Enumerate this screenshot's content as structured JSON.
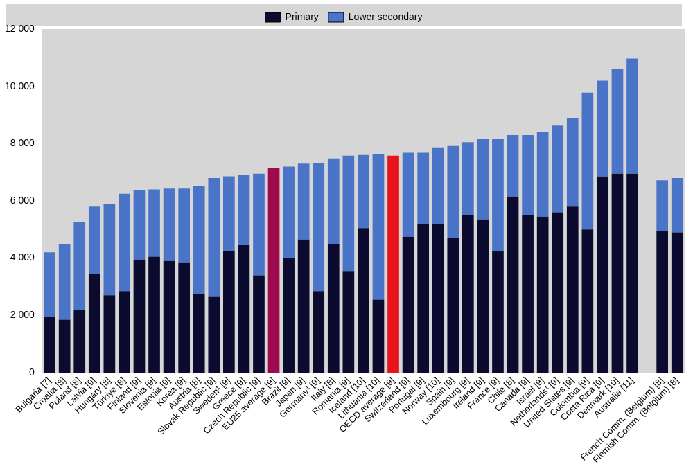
{
  "chart_data": {
    "type": "bar",
    "stacked": true,
    "grid": false,
    "legend": "top",
    "categories": [
      "Bulgaria [7]",
      "Croatia [8]",
      "Poland [8]",
      "Latvia [9]",
      "Hungary [8]",
      "Türkiye [8]",
      "Finland [9]",
      "Slovenia [9]",
      "Estonia [9]",
      "Korea [9]",
      "Austria [8]",
      "Slovak Republic [9]",
      "Sweden¹ [9]",
      "Greece [9]",
      "Czech Republic [9]",
      "EU25 average [9]",
      "Brazil [9]",
      "Japan [9]",
      "Germany¹ [9]",
      "Italy [8]",
      "Romania [9]",
      "Iceland [10]",
      "Lithuania [10]",
      "OECD average [9]",
      "Switzerland [9]",
      "Portugal [9]",
      "Norway [10]",
      "Spain [9]",
      "Luxembourg [9]",
      "Ireland [9]",
      "France [9]",
      "Chile [8]",
      "Canada [9]",
      "Israel [9]",
      "Netherlands¹ [9]",
      "United States [9]",
      "Colombia [9]",
      "Costa Rica [9]",
      "Denmark [10]",
      "Australia [11]",
      null,
      "French Comm. (Belgium) [8]",
      "Flemish Comm. (Belgium) [8]"
    ],
    "series": [
      {
        "name": "Primary",
        "color": "#0b0b30",
        "colors": [
          "#0b0b30",
          "#0b0b30",
          "#0b0b30",
          "#0b0b30",
          "#0b0b30",
          "#0b0b30",
          "#0b0b30",
          "#0b0b30",
          "#0b0b30",
          "#0b0b30",
          "#0b0b30",
          "#0b0b30",
          "#0b0b30",
          "#0b0b30",
          "#0b0b30",
          "#9e0a4e",
          "#0b0b30",
          "#0b0b30",
          "#0b0b30",
          "#0b0b30",
          "#0b0b30",
          "#0b0b30",
          "#0b0b30",
          "#e8141c",
          "#0b0b30",
          "#0b0b30",
          "#0b0b30",
          "#0b0b30",
          "#0b0b30",
          "#0b0b30",
          "#0b0b30",
          "#0b0b30",
          "#0b0b30",
          "#0b0b30",
          "#0b0b30",
          "#0b0b30",
          "#0b0b30",
          "#0b0b30",
          "#0b0b30",
          "#0b0b30",
          "#0b0b30",
          "#0b0b30",
          "#0b0b30"
        ],
        "values": [
          1950,
          1850,
          2200,
          3450,
          2700,
          2850,
          3950,
          4050,
          3900,
          3850,
          2750,
          2650,
          4250,
          4450,
          3400,
          4000,
          4000,
          4650,
          2850,
          4500,
          3550,
          5050,
          2550,
          4500,
          4750,
          5200,
          5200,
          4700,
          5500,
          5350,
          4250,
          6150,
          5500,
          5450,
          5600,
          5800,
          5000,
          6850,
          6950,
          6950,
          null,
          4950,
          4900
        ]
      },
      {
        "name": "Lower secondary",
        "color": "#4a74c8",
        "colors": [
          "#4a74c8",
          "#4a74c8",
          "#4a74c8",
          "#4a74c8",
          "#4a74c8",
          "#4a74c8",
          "#4a74c8",
          "#4a74c8",
          "#4a74c8",
          "#4a74c8",
          "#4a74c8",
          "#4a74c8",
          "#4a74c8",
          "#4a74c8",
          "#4a74c8",
          "#9e0a4e",
          "#4a74c8",
          "#4a74c8",
          "#4a74c8",
          "#4a74c8",
          "#4a74c8",
          "#4a74c8",
          "#4a74c8",
          "#e8141c",
          "#4a74c8",
          "#4a74c8",
          "#4a74c8",
          "#4a74c8",
          "#4a74c8",
          "#4a74c8",
          "#4a74c8",
          "#4a74c8",
          "#4a74c8",
          "#4a74c8",
          "#4a74c8",
          "#4a74c8",
          "#4a74c8",
          "#4a74c8",
          "#4a74c8",
          "#4a74c8",
          "#4a74c8",
          "#4a74c8",
          "#4a74c8"
        ],
        "values": [
          2250,
          2650,
          3050,
          2350,
          3200,
          3400,
          2430,
          2350,
          2530,
          2580,
          3780,
          4150,
          2610,
          2450,
          3550,
          3150,
          3200,
          2650,
          4480,
          2980,
          4030,
          2550,
          5070,
          3080,
          2930,
          2480,
          2670,
          3220,
          2550,
          2800,
          3920,
          2150,
          2800,
          2950,
          3030,
          3080,
          4780,
          3350,
          3650,
          4020,
          null,
          1770,
          1900
        ]
      }
    ],
    "ylim": [
      0,
      12000
    ],
    "yticks": [
      0,
      {
        "value": 2000,
        "label": "2 000"
      },
      {
        "value": 4000,
        "label": "4 000"
      },
      {
        "value": 6000,
        "label": "6 000"
      },
      {
        "value": 8000,
        "label": "8 000"
      },
      {
        "value": 10000,
        "label": "10 000"
      },
      {
        "value": 12000,
        "label": "12 000"
      }
    ]
  }
}
